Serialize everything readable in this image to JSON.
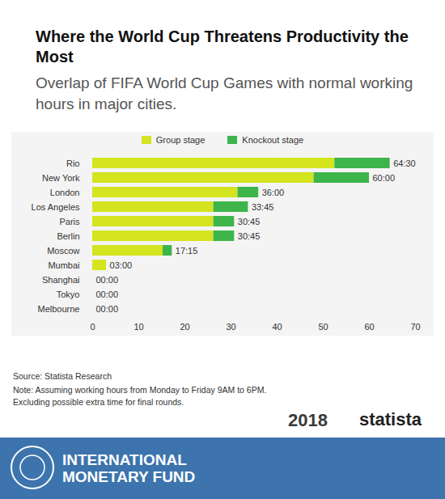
{
  "chart_data": {
    "type": "bar",
    "title": "Where the World Cup Threatens Productivity the Most",
    "subtitle": "Overlap of FIFA World Cup Games with normal working hours in major cities.",
    "orientation": "horizontal",
    "stacked": true,
    "categories": [
      "Rio",
      "New York",
      "London",
      "Los Angeles",
      "Paris",
      "Berlin",
      "Moscow",
      "Mumbai",
      "Shanghai",
      "Tokyo",
      "Melbourne"
    ],
    "series": [
      {
        "name": "Group stage",
        "color": "#d4e41f",
        "values": [
          52.5,
          48,
          31.5,
          26.25,
          26.25,
          26.25,
          15.25,
          3,
          0,
          0,
          0
        ]
      },
      {
        "name": "Knockout stage",
        "color": "#3db54a",
        "values": [
          12,
          12,
          4.5,
          7.5,
          4.5,
          4.5,
          2,
          0,
          0,
          0,
          0
        ]
      }
    ],
    "totals": [
      64.5,
      60,
      36,
      33.75,
      30.75,
      30.75,
      17.25,
      3,
      0,
      0,
      0
    ],
    "total_labels": [
      "64:30",
      "60:00",
      "36:00",
      "33:45",
      "30:45",
      "30:45",
      "17:15",
      "03:00",
      "00:00",
      "00:00",
      "00:00"
    ],
    "data_labels": true,
    "xlim": [
      0,
      70
    ],
    "xticks": [
      0,
      10,
      20,
      30,
      40,
      50,
      60,
      70
    ],
    "grid": false,
    "legend": "top",
    "source": "Source: Statista Research",
    "notes": [
      "Note: Assuming working hours from Monday to Friday 9AM to 6PM.",
      "Excluding possible extra time for final rounds."
    ],
    "logos": [
      "2018",
      "statista"
    ],
    "footer": "INTERNATIONAL MONETARY FUND"
  }
}
